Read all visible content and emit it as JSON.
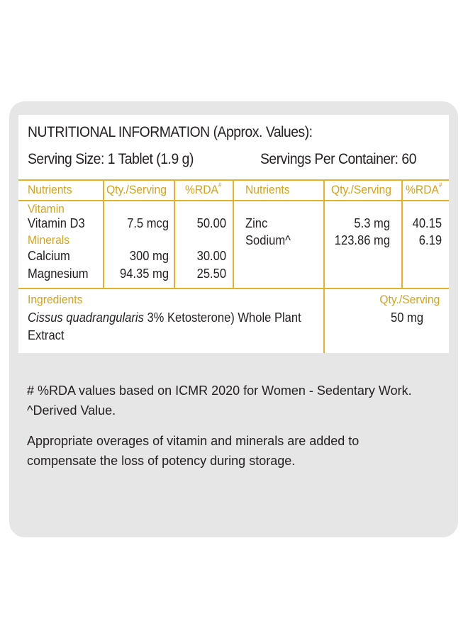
{
  "colors": {
    "accent": "#d4a21b",
    "panel": "#e6e6e6",
    "text": "#231f20"
  },
  "title": "NUTRITIONAL INFORMATION (Approx. Values):",
  "serving_size": "Serving Size: 1 Tablet (1.9 g)",
  "servings_per_container": "Servings Per Container: 60",
  "headers": {
    "nutrients": "Nutrients",
    "qty": "Qty./Serving",
    "rda": "%RDA",
    "rda_mark": "#"
  },
  "left": {
    "vitamin_group": "Vitamin",
    "minerals_group": "Minerals",
    "rows": [
      {
        "name": "Vitamin D3",
        "qty": "7.5 mcg",
        "rda": "50.00"
      },
      {
        "name": "Calcium",
        "qty": "300 mg",
        "rda": "30.00"
      },
      {
        "name": "Magnesium",
        "qty": "94.35 mg",
        "rda": "25.50"
      }
    ]
  },
  "right": {
    "rows": [
      {
        "name": "Zinc",
        "qty": "5.3 mg",
        "rda": "40.15"
      },
      {
        "name": "Sodium^",
        "qty": "123.86 mg",
        "rda": "6.19"
      }
    ]
  },
  "ingredients": {
    "label": "Ingredients",
    "qty_label": "Qty./Serving",
    "name_italic": "Cissus quadrangularis",
    "name_rest": " 3% Ketosterone) Whole Plant",
    "name_line2": "Extract",
    "qty": "50 mg"
  },
  "footnotes": {
    "rda_note": "# %RDA values based on ICMR 2020 for Women - Sedentary Work.",
    "derived_note": "^Derived Value.",
    "overage_line1": "Appropriate overages of vitamin and minerals are added to",
    "overage_line2": "compensate the loss of potency during storage."
  }
}
